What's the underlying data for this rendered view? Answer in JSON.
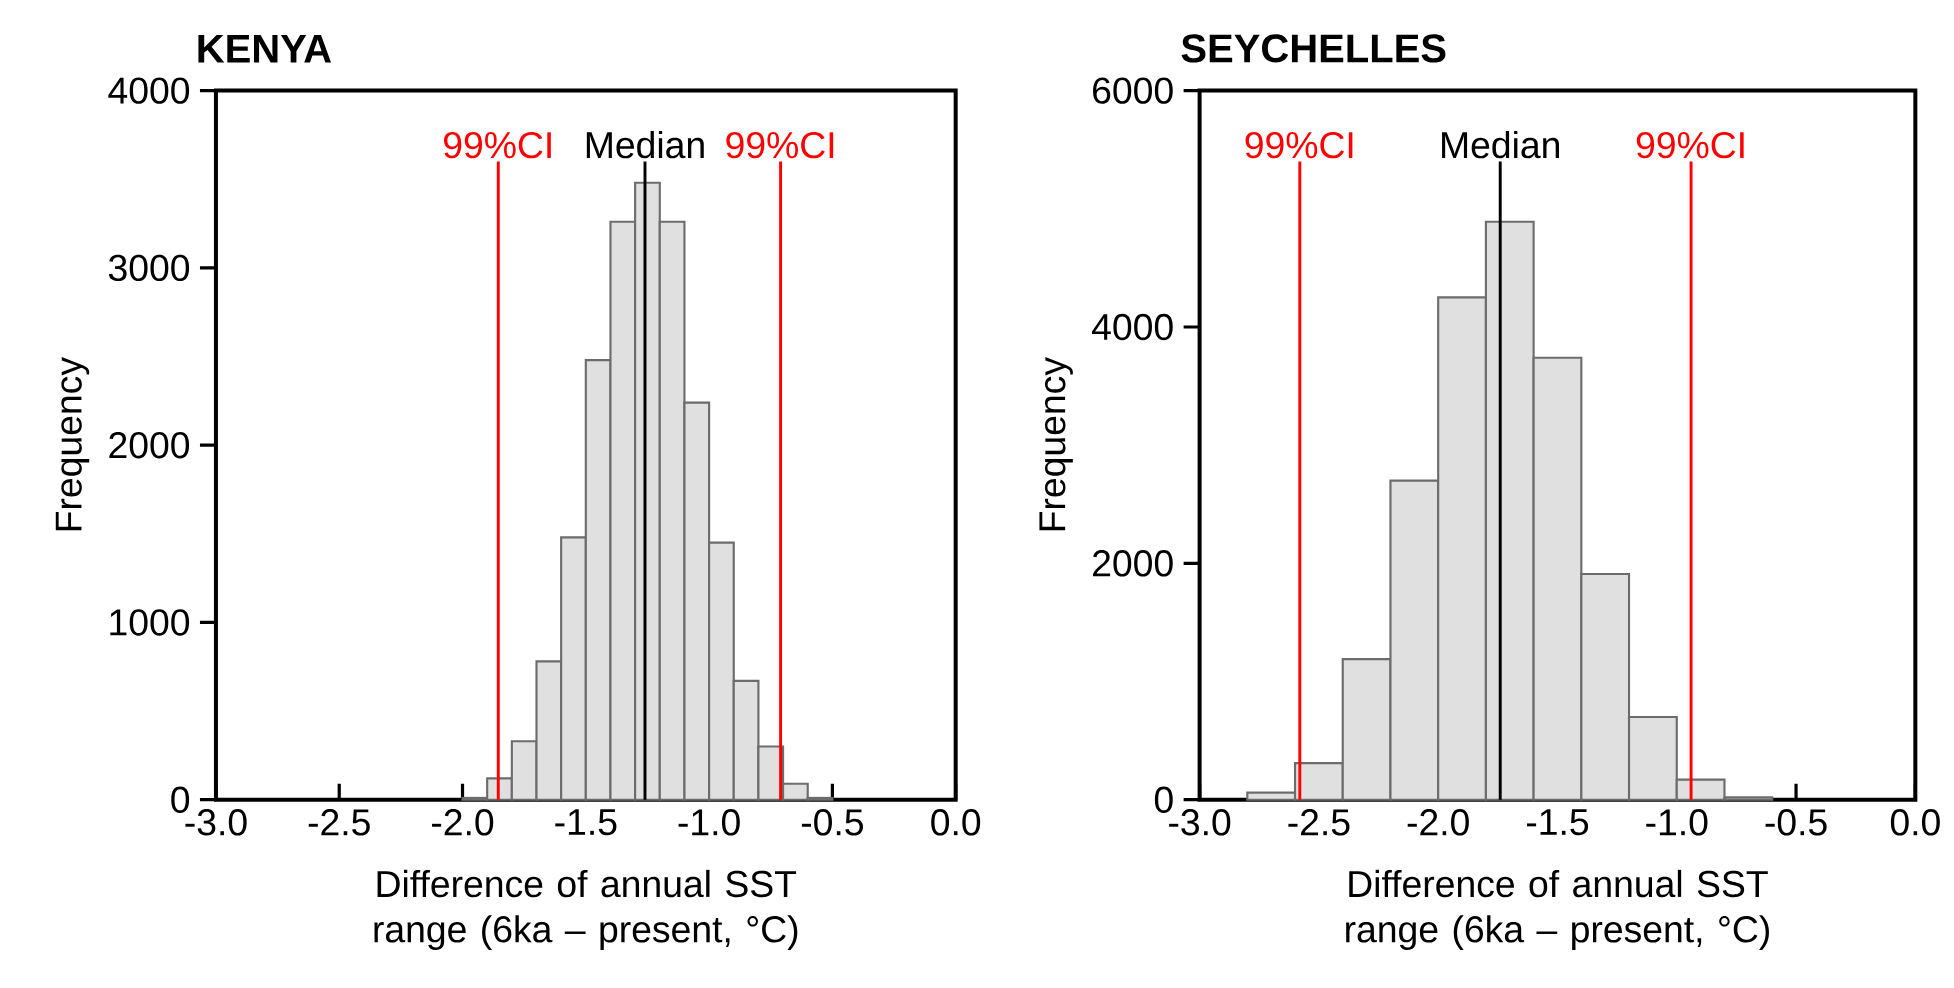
{
  "chart_data": [
    {
      "type": "histogram",
      "title": "KENYA",
      "xlabel": "Difference of annual SST range (6ka – present, °C)",
      "ylabel": "Frequency",
      "bins": [
        -2.0,
        -1.9,
        -1.8,
        -1.7,
        -1.6,
        -1.5,
        -1.4,
        -1.3,
        -1.2,
        -1.1,
        -1.0,
        -0.9,
        -0.8,
        -0.7,
        -0.6,
        -0.5
      ],
      "values": [
        10,
        120,
        330,
        780,
        1480,
        2480,
        3260,
        3480,
        3260,
        2240,
        1450,
        670,
        300,
        90,
        10
      ],
      "color": "#e0e0e0",
      "xlim": [
        -3.0,
        0.0
      ],
      "xticks": [
        {
          "value": -3.0,
          "label": "-3.0"
        },
        {
          "value": -2.5,
          "label": "-2.5"
        },
        {
          "value": -2.0,
          "label": "-2.0"
        },
        {
          "value": -1.5,
          "label": "-1.5"
        },
        {
          "value": -1.0,
          "label": "-1.0"
        },
        {
          "value": -0.5,
          "label": "-0.5"
        },
        {
          "value": 0.0,
          "label": "0.0"
        }
      ],
      "ylim": [
        0,
        4000
      ],
      "yticks": [
        0,
        1000,
        2000,
        3000,
        4000
      ],
      "ref_lines": [
        {
          "axis": "x",
          "value": -1.855,
          "label": "99%CI",
          "color": "#ff0000"
        },
        {
          "axis": "x",
          "value": -1.26,
          "label": "Median",
          "color": "#000000"
        },
        {
          "axis": "x",
          "value": -0.71,
          "label": "99%CI",
          "color": "#ff0000"
        }
      ]
    },
    {
      "type": "histogram",
      "title": "SEYCHELLES",
      "xlabel": "Difference of annual SST range (6ka – present, °C)",
      "ylabel": "Frequency",
      "bins": [
        -2.8,
        -2.6,
        -2.4,
        -2.2,
        -2.0,
        -1.8,
        -1.6,
        -1.4,
        -1.2,
        -1.0,
        -0.8,
        -0.6
      ],
      "values": [
        60,
        310,
        1190,
        2700,
        4250,
        4890,
        3740,
        1910,
        700,
        170,
        20
      ],
      "color": "#e0e0e0",
      "xlim": [
        -3.0,
        0.0
      ],
      "xticks": [
        {
          "value": -3.0,
          "label": "-3.0"
        },
        {
          "value": -2.5,
          "label": "-2.5"
        },
        {
          "value": -2.0,
          "label": "-2.0"
        },
        {
          "value": -1.5,
          "label": "-1.5"
        },
        {
          "value": -1.0,
          "label": "-1.0"
        },
        {
          "value": -0.5,
          "label": "-0.5"
        },
        {
          "value": 0.0,
          "label": "0.0"
        }
      ],
      "ylim": [
        0,
        6000
      ],
      "yticks": [
        0,
        2000,
        4000,
        6000
      ],
      "ref_lines": [
        {
          "axis": "x",
          "value": -2.58,
          "label": "99%CI",
          "color": "#ff0000"
        },
        {
          "axis": "x",
          "value": -1.74,
          "label": "Median",
          "color": "#000000"
        },
        {
          "axis": "x",
          "value": -0.94,
          "label": "99%CI",
          "color": "#ff0000"
        }
      ]
    }
  ]
}
